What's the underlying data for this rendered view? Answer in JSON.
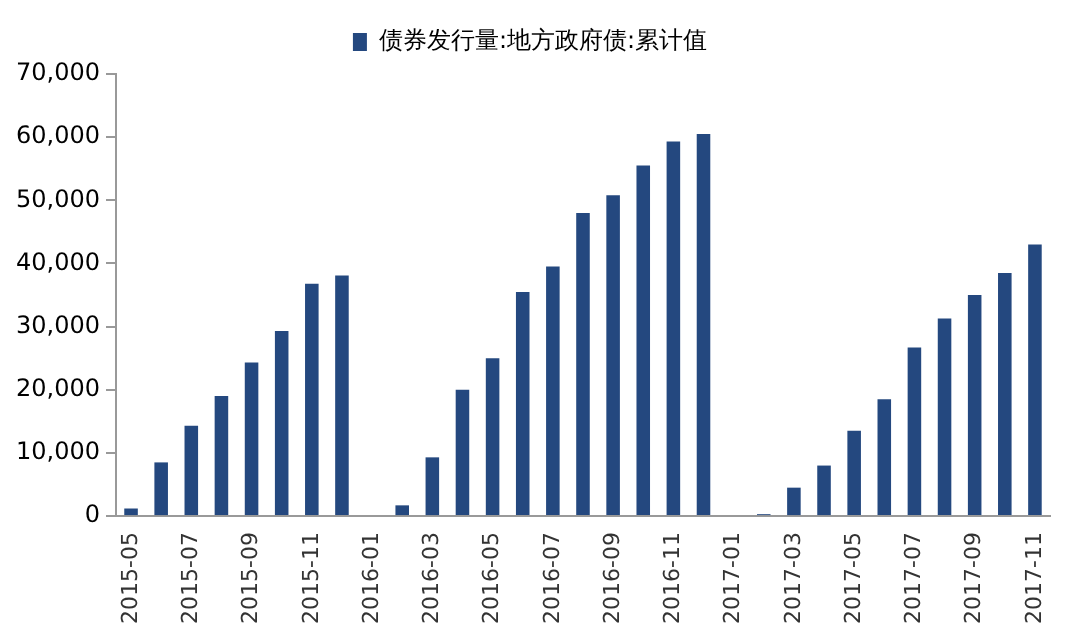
{
  "chart_data": {
    "type": "bar",
    "categories": [
      "2015-05",
      null,
      "2015-07",
      null,
      "2015-09",
      null,
      "2015-11",
      null,
      "2016-01",
      null,
      "2016-03",
      null,
      "2016-05",
      null,
      "2016-07",
      null,
      "2016-09",
      null,
      "2016-11",
      null,
      "2017-01",
      null,
      "2017-03",
      null,
      "2017-05",
      null,
      "2017-07",
      null,
      "2017-09",
      null,
      "2017-11"
    ],
    "series": [
      {
        "name": "债券发行量:地方政府债:累计值",
        "color": "#24487f",
        "values": [
          1200,
          8500,
          14300,
          19000,
          24300,
          29300,
          36800,
          38100,
          null,
          1700,
          9300,
          20000,
          25000,
          35500,
          39500,
          48000,
          50800,
          55500,
          59300,
          60500,
          null,
          300,
          4500,
          8000,
          13500,
          18500,
          26700,
          31300,
          35000,
          38500,
          43000
        ]
      }
    ],
    "ylim": [
      0,
      70000
    ],
    "yticks": [
      0,
      {
        "value": 10000,
        "label": "10,000"
      },
      {
        "value": 20000,
        "label": "20,000"
      },
      {
        "value": 30000,
        "label": "30,000"
      },
      {
        "value": 40000,
        "label": "40,000"
      },
      {
        "value": 50000,
        "label": "50,000"
      },
      {
        "value": 60000,
        "label": "60,000"
      },
      {
        "value": 70000,
        "label": "70,000"
      }
    ],
    "grid": false,
    "legend": "top"
  }
}
